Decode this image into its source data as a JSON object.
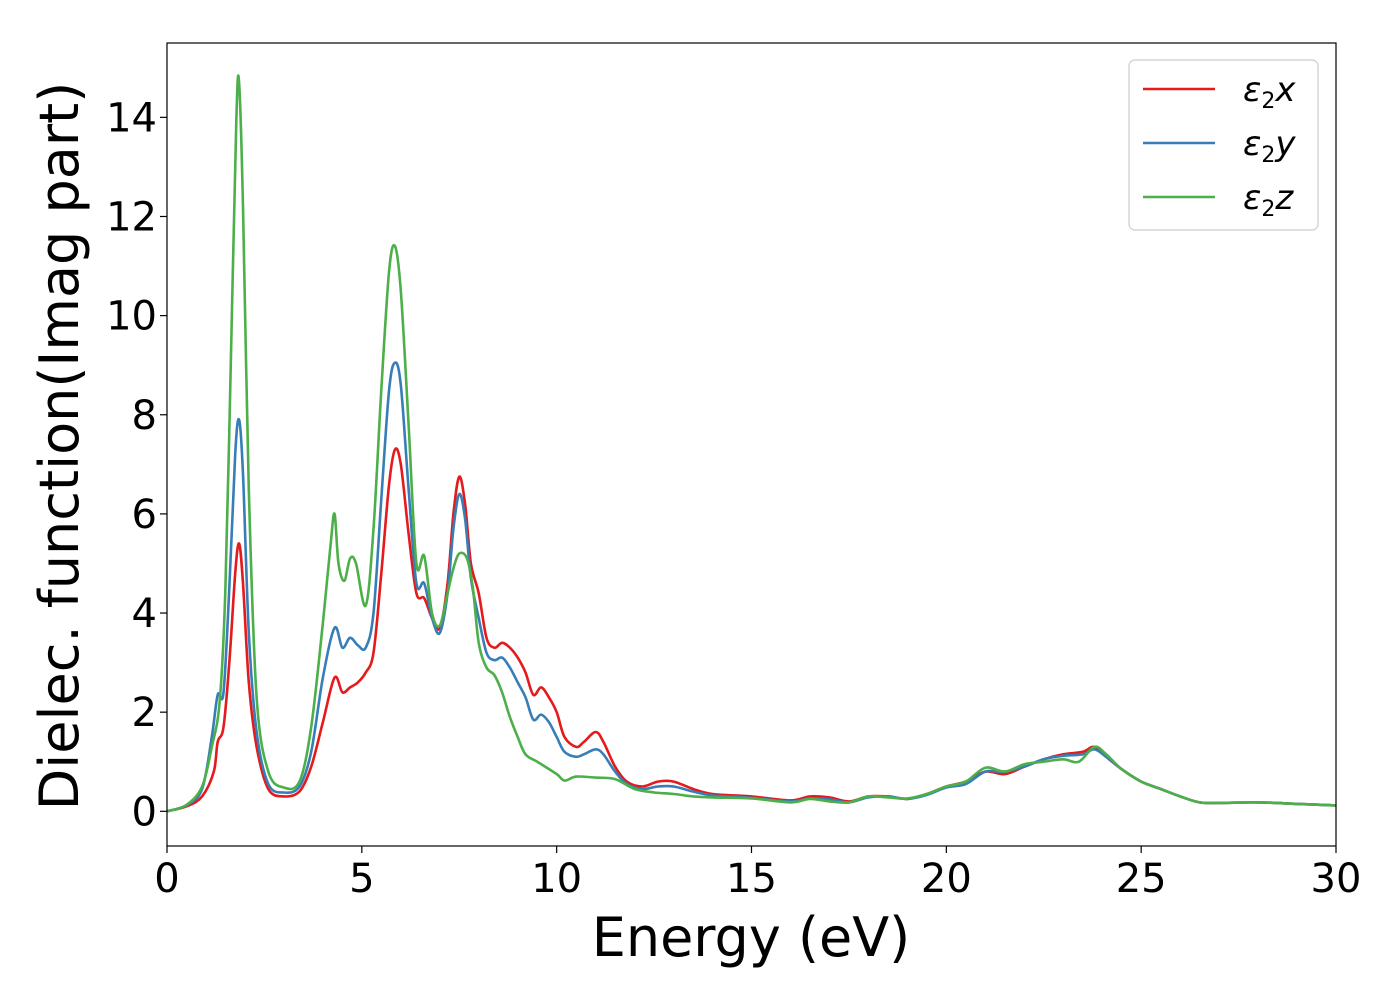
{
  "chart_data": {
    "type": "line",
    "xlabel": "Energy (eV)",
    "ylabel": "Dielec. function(Imag part)",
    "xlim": [
      0,
      30
    ],
    "ylim": [
      -0.7,
      15.5
    ],
    "xticks": [
      "0",
      "5",
      "10",
      "15",
      "20",
      "25",
      "30"
    ],
    "yticks": [
      "0",
      "2",
      "4",
      "6",
      "8",
      "10",
      "12",
      "14"
    ],
    "grid": false,
    "legend_position": "top-right",
    "series": [
      {
        "name_prefix": "ε",
        "name_sub": "2",
        "name_suffix": "x",
        "color": "#e41a1c",
        "points": [
          [
            0,
            0
          ],
          [
            0.5,
            0.1
          ],
          [
            0.9,
            0.3
          ],
          [
            1.2,
            0.8
          ],
          [
            1.3,
            1.4
          ],
          [
            1.45,
            1.7
          ],
          [
            1.6,
            3.0
          ],
          [
            1.75,
            4.8
          ],
          [
            1.85,
            5.4
          ],
          [
            1.95,
            4.6
          ],
          [
            2.1,
            2.6
          ],
          [
            2.3,
            1.3
          ],
          [
            2.6,
            0.45
          ],
          [
            3.0,
            0.3
          ],
          [
            3.4,
            0.4
          ],
          [
            3.7,
            0.9
          ],
          [
            4.0,
            1.8
          ],
          [
            4.3,
            2.7
          ],
          [
            4.5,
            2.4
          ],
          [
            4.7,
            2.5
          ],
          [
            4.9,
            2.6
          ],
          [
            5.1,
            2.8
          ],
          [
            5.3,
            3.2
          ],
          [
            5.5,
            4.8
          ],
          [
            5.7,
            6.6
          ],
          [
            5.85,
            7.3
          ],
          [
            6.0,
            7.0
          ],
          [
            6.2,
            5.6
          ],
          [
            6.4,
            4.4
          ],
          [
            6.6,
            4.3
          ],
          [
            6.8,
            3.9
          ],
          [
            7.0,
            3.7
          ],
          [
            7.2,
            4.6
          ],
          [
            7.35,
            6.0
          ],
          [
            7.5,
            6.75
          ],
          [
            7.65,
            6.2
          ],
          [
            7.8,
            5.0
          ],
          [
            8.0,
            4.4
          ],
          [
            8.2,
            3.5
          ],
          [
            8.4,
            3.3
          ],
          [
            8.6,
            3.4
          ],
          [
            8.8,
            3.3
          ],
          [
            9.0,
            3.1
          ],
          [
            9.2,
            2.8
          ],
          [
            9.4,
            2.35
          ],
          [
            9.6,
            2.5
          ],
          [
            9.8,
            2.3
          ],
          [
            10.0,
            2.0
          ],
          [
            10.2,
            1.5
          ],
          [
            10.5,
            1.3
          ],
          [
            10.7,
            1.4
          ],
          [
            11.0,
            1.6
          ],
          [
            11.2,
            1.4
          ],
          [
            11.5,
            0.9
          ],
          [
            11.8,
            0.6
          ],
          [
            12.2,
            0.5
          ],
          [
            12.6,
            0.6
          ],
          [
            13.0,
            0.6
          ],
          [
            13.5,
            0.45
          ],
          [
            14.0,
            0.35
          ],
          [
            15.0,
            0.3
          ],
          [
            16.0,
            0.22
          ],
          [
            16.5,
            0.3
          ],
          [
            17.0,
            0.28
          ],
          [
            17.5,
            0.2
          ],
          [
            18.0,
            0.3
          ],
          [
            18.5,
            0.3
          ],
          [
            19.0,
            0.25
          ],
          [
            19.5,
            0.35
          ],
          [
            20.0,
            0.5
          ],
          [
            20.5,
            0.6
          ],
          [
            21.0,
            0.8
          ],
          [
            21.5,
            0.75
          ],
          [
            22.0,
            0.9
          ],
          [
            22.5,
            1.05
          ],
          [
            23.0,
            1.15
          ],
          [
            23.5,
            1.2
          ],
          [
            23.8,
            1.3
          ],
          [
            24.1,
            1.1
          ],
          [
            24.5,
            0.85
          ],
          [
            25.0,
            0.6
          ],
          [
            25.5,
            0.45
          ],
          [
            26.0,
            0.3
          ],
          [
            26.5,
            0.18
          ],
          [
            27.0,
            0.17
          ],
          [
            28.0,
            0.18
          ],
          [
            29.0,
            0.15
          ],
          [
            30.0,
            0.12
          ]
        ]
      },
      {
        "name_prefix": "ε",
        "name_sub": "2",
        "name_suffix": "y",
        "color": "#377eb8",
        "points": [
          [
            0,
            0
          ],
          [
            0.5,
            0.12
          ],
          [
            0.9,
            0.45
          ],
          [
            1.15,
            1.5
          ],
          [
            1.3,
            2.35
          ],
          [
            1.45,
            2.4
          ],
          [
            1.6,
            4.5
          ],
          [
            1.75,
            7.2
          ],
          [
            1.85,
            7.9
          ],
          [
            1.95,
            6.8
          ],
          [
            2.1,
            3.6
          ],
          [
            2.3,
            1.6
          ],
          [
            2.6,
            0.55
          ],
          [
            3.0,
            0.38
          ],
          [
            3.4,
            0.5
          ],
          [
            3.7,
            1.2
          ],
          [
            4.0,
            2.7
          ],
          [
            4.3,
            3.7
          ],
          [
            4.5,
            3.3
          ],
          [
            4.7,
            3.5
          ],
          [
            4.9,
            3.35
          ],
          [
            5.1,
            3.3
          ],
          [
            5.3,
            4.0
          ],
          [
            5.5,
            6.3
          ],
          [
            5.7,
            8.5
          ],
          [
            5.85,
            9.05
          ],
          [
            6.0,
            8.6
          ],
          [
            6.2,
            6.5
          ],
          [
            6.4,
            4.6
          ],
          [
            6.6,
            4.6
          ],
          [
            6.8,
            3.9
          ],
          [
            7.0,
            3.6
          ],
          [
            7.2,
            4.4
          ],
          [
            7.35,
            5.7
          ],
          [
            7.5,
            6.4
          ],
          [
            7.65,
            5.9
          ],
          [
            7.8,
            4.7
          ],
          [
            8.0,
            3.9
          ],
          [
            8.2,
            3.2
          ],
          [
            8.4,
            3.05
          ],
          [
            8.6,
            3.1
          ],
          [
            8.8,
            2.9
          ],
          [
            9.0,
            2.6
          ],
          [
            9.2,
            2.3
          ],
          [
            9.4,
            1.85
          ],
          [
            9.6,
            1.95
          ],
          [
            9.8,
            1.8
          ],
          [
            10.0,
            1.5
          ],
          [
            10.2,
            1.2
          ],
          [
            10.5,
            1.1
          ],
          [
            10.7,
            1.15
          ],
          [
            11.0,
            1.25
          ],
          [
            11.2,
            1.15
          ],
          [
            11.5,
            0.8
          ],
          [
            11.8,
            0.55
          ],
          [
            12.2,
            0.45
          ],
          [
            12.6,
            0.5
          ],
          [
            13.0,
            0.5
          ],
          [
            13.5,
            0.4
          ],
          [
            14.0,
            0.32
          ],
          [
            15.0,
            0.27
          ],
          [
            16.0,
            0.2
          ],
          [
            16.5,
            0.26
          ],
          [
            17.0,
            0.24
          ],
          [
            17.5,
            0.18
          ],
          [
            18.0,
            0.28
          ],
          [
            18.5,
            0.3
          ],
          [
            19.0,
            0.25
          ],
          [
            19.5,
            0.33
          ],
          [
            20.0,
            0.48
          ],
          [
            20.5,
            0.55
          ],
          [
            21.0,
            0.8
          ],
          [
            21.5,
            0.8
          ],
          [
            22.0,
            0.9
          ],
          [
            22.5,
            1.05
          ],
          [
            23.0,
            1.12
          ],
          [
            23.5,
            1.15
          ],
          [
            23.8,
            1.25
          ],
          [
            24.1,
            1.1
          ],
          [
            24.5,
            0.85
          ],
          [
            25.0,
            0.6
          ],
          [
            25.5,
            0.45
          ],
          [
            26.0,
            0.3
          ],
          [
            26.5,
            0.18
          ],
          [
            27.0,
            0.17
          ],
          [
            28.0,
            0.18
          ],
          [
            29.0,
            0.15
          ],
          [
            30.0,
            0.12
          ]
        ]
      },
      {
        "name_prefix": "ε",
        "name_sub": "2",
        "name_suffix": "z",
        "color": "#4daf4a",
        "points": [
          [
            0,
            0
          ],
          [
            0.5,
            0.13
          ],
          [
            0.9,
            0.5
          ],
          [
            1.15,
            1.3
          ],
          [
            1.35,
            2.2
          ],
          [
            1.5,
            4.5
          ],
          [
            1.65,
            9.5
          ],
          [
            1.78,
            14.0
          ],
          [
            1.85,
            14.7
          ],
          [
            1.95,
            12.2
          ],
          [
            2.1,
            6.5
          ],
          [
            2.3,
            2.3
          ],
          [
            2.6,
            0.8
          ],
          [
            3.0,
            0.48
          ],
          [
            3.4,
            0.6
          ],
          [
            3.7,
            1.7
          ],
          [
            4.0,
            3.8
          ],
          [
            4.2,
            5.4
          ],
          [
            4.3,
            6.0
          ],
          [
            4.4,
            5.0
          ],
          [
            4.55,
            4.65
          ],
          [
            4.7,
            5.1
          ],
          [
            4.85,
            5.0
          ],
          [
            5.1,
            4.15
          ],
          [
            5.3,
            5.7
          ],
          [
            5.5,
            8.5
          ],
          [
            5.7,
            10.9
          ],
          [
            5.85,
            11.4
          ],
          [
            6.0,
            10.5
          ],
          [
            6.2,
            7.8
          ],
          [
            6.4,
            5.0
          ],
          [
            6.6,
            5.15
          ],
          [
            6.8,
            4.0
          ],
          [
            7.0,
            3.75
          ],
          [
            7.2,
            4.4
          ],
          [
            7.35,
            4.9
          ],
          [
            7.5,
            5.2
          ],
          [
            7.7,
            5.1
          ],
          [
            7.85,
            4.5
          ],
          [
            8.0,
            3.4
          ],
          [
            8.2,
            2.9
          ],
          [
            8.4,
            2.75
          ],
          [
            8.6,
            2.4
          ],
          [
            8.8,
            1.9
          ],
          [
            9.0,
            1.5
          ],
          [
            9.2,
            1.15
          ],
          [
            9.5,
            1.0
          ],
          [
            10.0,
            0.75
          ],
          [
            10.2,
            0.62
          ],
          [
            10.5,
            0.7
          ],
          [
            11.0,
            0.68
          ],
          [
            11.5,
            0.65
          ],
          [
            12.0,
            0.45
          ],
          [
            12.5,
            0.38
          ],
          [
            13.0,
            0.35
          ],
          [
            13.5,
            0.3
          ],
          [
            14.0,
            0.28
          ],
          [
            15.0,
            0.26
          ],
          [
            16.0,
            0.18
          ],
          [
            16.5,
            0.25
          ],
          [
            17.0,
            0.2
          ],
          [
            17.5,
            0.18
          ],
          [
            18.0,
            0.3
          ],
          [
            18.5,
            0.28
          ],
          [
            19.0,
            0.26
          ],
          [
            19.5,
            0.35
          ],
          [
            20.0,
            0.5
          ],
          [
            20.5,
            0.6
          ],
          [
            21.0,
            0.88
          ],
          [
            21.5,
            0.8
          ],
          [
            22.0,
            0.95
          ],
          [
            22.5,
            1.0
          ],
          [
            23.0,
            1.05
          ],
          [
            23.4,
            1.0
          ],
          [
            23.8,
            1.3
          ],
          [
            24.1,
            1.15
          ],
          [
            24.5,
            0.85
          ],
          [
            25.0,
            0.6
          ],
          [
            25.5,
            0.45
          ],
          [
            26.0,
            0.3
          ],
          [
            26.5,
            0.18
          ],
          [
            27.0,
            0.17
          ],
          [
            28.0,
            0.18
          ],
          [
            29.0,
            0.15
          ],
          [
            30.0,
            0.12
          ]
        ]
      }
    ]
  }
}
